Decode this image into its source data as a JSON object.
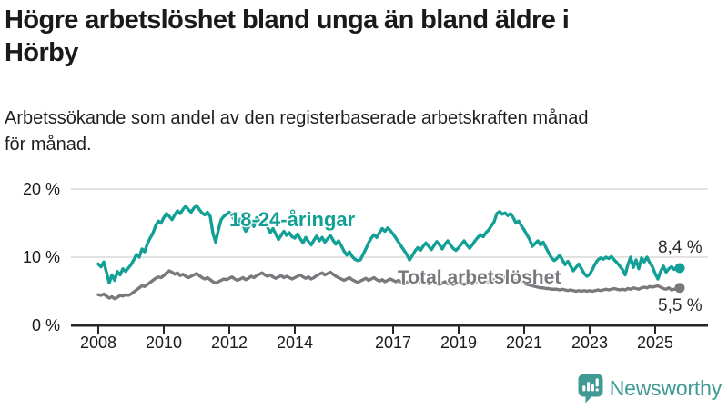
{
  "header": {
    "title_lines": [
      "Högre arbetslöshet bland unga än bland äldre i",
      "Hörby"
    ],
    "subtitle_lines": [
      "Arbetssökande som andel av den registerbaserade arbetskraften månad",
      "för månad."
    ]
  },
  "chart_data": {
    "type": "line",
    "title": "Högre arbetslöshet bland unga än bland äldre i Hörby",
    "subtitle": "Arbetssökande som andel av den registerbaserade arbetskraften månad för månad.",
    "unit": "%",
    "frequency": "monthly",
    "x_start": "2008-01",
    "x_end": "2025-10",
    "ylim": [
      0,
      20
    ],
    "grid": "horizontal",
    "legend_position": "inline-labels",
    "axis_color": "#262626",
    "gridline_color": "#d9d9d9",
    "yticks": [
      {
        "value": 0,
        "label": "0 %"
      },
      {
        "value": 10,
        "label": "10 %"
      },
      {
        "value": 20,
        "label": "20 %"
      }
    ],
    "xticks": [
      {
        "label": "2008",
        "month_index": 0
      },
      {
        "label": "2010",
        "month_index": 24
      },
      {
        "label": "2012",
        "month_index": 48
      },
      {
        "label": "2014",
        "month_index": 72
      },
      {
        "label": "2017",
        "month_index": 108
      },
      {
        "label": "2019",
        "month_index": 132
      },
      {
        "label": "2021",
        "month_index": 156
      },
      {
        "label": "2023",
        "month_index": 180
      },
      {
        "label": "2025",
        "month_index": 204
      }
    ],
    "series": [
      {
        "name": "18-24-åringar",
        "color": "#12a096",
        "end_label": "8,4 %",
        "end_value": 8.4,
        "values": [
          9.0,
          8.6,
          9.3,
          7.8,
          6.2,
          7.4,
          6.6,
          7.9,
          7.4,
          8.3,
          7.9,
          8.4,
          8.9,
          9.6,
          10.4,
          10.0,
          11.2,
          10.8,
          12.0,
          12.8,
          13.5,
          14.6,
          15.3,
          15.0,
          15.8,
          16.4,
          16.0,
          15.5,
          16.2,
          16.8,
          16.4,
          17.0,
          17.5,
          17.0,
          16.6,
          17.2,
          17.6,
          17.0,
          16.5,
          16.2,
          16.6,
          16.0,
          13.5,
          12.2,
          14.0,
          15.5,
          16.0,
          16.3,
          16.6,
          16.0,
          15.4,
          14.8,
          15.6,
          14.7,
          13.8,
          14.4,
          15.2,
          14.5,
          15.8,
          15.2,
          14.6,
          15.2,
          14.4,
          13.6,
          14.2,
          13.4,
          12.6,
          13.2,
          13.8,
          13.2,
          13.6,
          13.0,
          12.8,
          13.4,
          12.7,
          12.1,
          12.9,
          12.3,
          11.8,
          12.5,
          13.1,
          12.4,
          12.9,
          12.2,
          12.7,
          13.2,
          12.5,
          11.9,
          12.4,
          11.7,
          10.9,
          10.3,
          10.8,
          10.1,
          9.7,
          9.5,
          9.6,
          10.4,
          11.2,
          12.1,
          12.8,
          13.3,
          12.9,
          13.6,
          14.2,
          13.8,
          14.3,
          13.9,
          13.4,
          12.8,
          12.2,
          11.6,
          11.0,
          10.4,
          9.6,
          10.2,
          10.9,
          11.4,
          11.0,
          11.6,
          12.1,
          11.6,
          11.1,
          11.7,
          12.3,
          11.8,
          11.2,
          11.9,
          12.4,
          11.8,
          11.3,
          11.0,
          11.4,
          11.9,
          12.4,
          11.8,
          11.3,
          11.8,
          12.4,
          12.9,
          13.3,
          13.0,
          13.6,
          14.0,
          14.6,
          15.2,
          16.4,
          16.7,
          16.3,
          16.5,
          16.1,
          16.4,
          15.8,
          15.0,
          15.3,
          14.6,
          14.0,
          13.3,
          12.6,
          11.6,
          12.0,
          12.4,
          11.8,
          12.2,
          11.4,
          10.6,
          9.9,
          9.5,
          9.8,
          10.3,
          9.6,
          8.9,
          9.4,
          8.7,
          8.0,
          8.5,
          9.0,
          8.3,
          7.6,
          7.2,
          7.5,
          8.2,
          9.0,
          9.6,
          9.9,
          9.7,
          10.0,
          9.8,
          10.1,
          9.6,
          9.2,
          8.7,
          8.2,
          7.4,
          8.9,
          10.0,
          8.5,
          9.6,
          8.3,
          9.9,
          9.3,
          10.0,
          9.2,
          8.6,
          7.6,
          6.8,
          7.9,
          8.7,
          7.8,
          8.3,
          8.6,
          8.2,
          8.5,
          8.4
        ]
      },
      {
        "name": "Total arbetslöshet",
        "color": "#7a787d",
        "end_label": "5,5 %",
        "end_value": 5.5,
        "values": [
          4.5,
          4.4,
          4.6,
          4.3,
          4.0,
          4.2,
          3.9,
          4.1,
          4.4,
          4.3,
          4.5,
          4.4,
          4.6,
          4.9,
          5.2,
          5.5,
          5.8,
          5.7,
          6.0,
          6.3,
          6.6,
          6.9,
          7.1,
          7.0,
          7.3,
          7.7,
          8.0,
          7.8,
          7.5,
          7.7,
          7.3,
          7.5,
          7.2,
          7.0,
          7.2,
          7.4,
          7.6,
          7.3,
          7.0,
          6.8,
          7.0,
          6.7,
          6.4,
          6.2,
          6.4,
          6.6,
          6.8,
          6.7,
          6.9,
          7.1,
          6.8,
          6.6,
          6.8,
          7.0,
          6.7,
          6.9,
          7.2,
          7.0,
          7.3,
          7.5,
          7.7,
          7.4,
          7.2,
          7.4,
          7.1,
          6.9,
          7.1,
          7.3,
          7.0,
          7.2,
          7.0,
          6.8,
          7.0,
          7.2,
          7.4,
          7.1,
          6.9,
          7.1,
          6.8,
          7.0,
          7.3,
          7.5,
          7.7,
          7.4,
          7.6,
          7.8,
          7.5,
          7.2,
          7.0,
          6.8,
          6.6,
          6.8,
          7.0,
          6.7,
          6.5,
          6.3,
          6.5,
          6.7,
          6.9,
          6.6,
          6.8,
          7.0,
          6.7,
          6.5,
          6.7,
          6.4,
          6.6,
          6.8,
          6.6,
          6.4,
          6.6,
          6.3,
          6.1,
          6.3,
          6.5,
          6.2,
          6.4,
          6.6,
          6.3,
          6.5,
          6.3,
          6.1,
          6.3,
          6.5,
          6.2,
          6.0,
          6.2,
          6.4,
          6.1,
          6.3,
          6.0,
          6.2,
          6.4,
          6.2,
          6.0,
          6.2,
          6.4,
          6.1,
          6.3,
          6.5,
          6.2,
          6.4,
          6.6,
          6.3,
          6.5,
          6.7,
          7.0,
          7.2,
          6.9,
          7.1,
          6.8,
          7.0,
          6.7,
          6.5,
          6.7,
          6.4,
          6.2,
          6.0,
          5.9,
          5.8,
          5.7,
          5.6,
          5.5,
          5.5,
          5.4,
          5.4,
          5.3,
          5.3,
          5.3,
          5.2,
          5.3,
          5.2,
          5.1,
          5.2,
          5.1,
          5.0,
          5.1,
          5.0,
          5.1,
          5.0,
          5.1,
          5.0,
          5.1,
          5.2,
          5.1,
          5.2,
          5.3,
          5.2,
          5.3,
          5.4,
          5.3,
          5.2,
          5.3,
          5.2,
          5.4,
          5.3,
          5.5,
          5.4,
          5.3,
          5.5,
          5.6,
          5.5,
          5.7,
          5.6,
          5.7,
          5.8,
          5.6,
          5.4,
          5.3,
          5.5,
          5.2,
          5.3,
          5.4,
          5.5
        ]
      }
    ]
  },
  "footer": {
    "brand": "Newsworthy",
    "brand_color": "#3e9a92",
    "logo_icon": "newsworthy-chart-bubble-icon"
  }
}
